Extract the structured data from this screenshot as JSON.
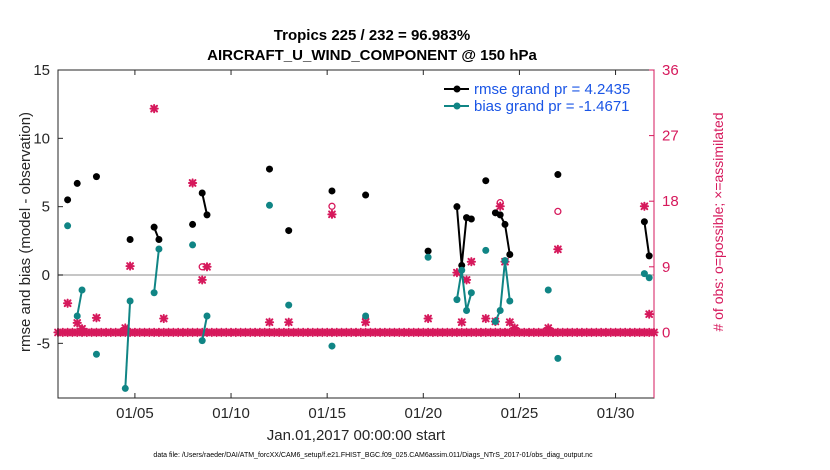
{
  "chart_data": {
    "type": "scatter",
    "title": "Tropics 225 / 232 = 96.983%",
    "subtitle": "AIRCRAFT_U_WIND_COMPONENT @ 150 hPa",
    "xlabel": "Jan.01,2017 00:00:00 start",
    "ylabel": "rmse and bias (model - observation)",
    "ylabel_right": "# of obs: o=possible; ×=assimilated",
    "footnote": "data file: /Users/raeder/DAI/ATM_forcXX/CAM6_setup/f.e21.FHIST_BGC.f09_025.CAM6assim.011/Diags_NTrS_2017-01/obs_diag_output.nc",
    "xlim": [
      1,
      32
    ],
    "ylim": [
      -9,
      15
    ],
    "ylim_right": [
      -9,
      36
    ],
    "x_ticks": [
      5,
      10,
      15,
      20,
      25,
      30
    ],
    "x_tick_labels": [
      "01/05",
      "01/10",
      "01/15",
      "01/20",
      "01/25",
      "01/30"
    ],
    "y_ticks": [
      -5,
      0,
      5,
      10,
      15
    ],
    "y_tick_labels": [
      "-5",
      "0",
      "5",
      "10",
      "15"
    ],
    "y_right_ticks": [
      0,
      9,
      18,
      27,
      36
    ],
    "y_right_tick_labels": [
      "0",
      "9",
      "18",
      "27",
      "36"
    ],
    "zero_line": 0,
    "grid": false,
    "legend_position": "top-right",
    "colors": {
      "rmse": "#000000",
      "bias": "#108585",
      "obs": "#d6195c",
      "zero_line": "#b4b4b4",
      "axis": "#262626"
    },
    "series": [
      {
        "name": "rmse grand pr = 4.2435",
        "key": "rmse",
        "segments": [
          [
            [
              1.5,
              5.5
            ]
          ],
          [
            [
              2.0,
              6.7
            ]
          ],
          [
            [
              3.0,
              7.2
            ]
          ],
          [
            [
              4.75,
              2.6
            ]
          ],
          [
            [
              6.0,
              3.5
            ],
            [
              6.25,
              2.6
            ]
          ],
          [
            [
              8.0,
              3.7
            ]
          ],
          [
            [
              8.5,
              6.0
            ],
            [
              8.75,
              4.4
            ]
          ],
          [
            [
              12.0,
              7.75
            ]
          ],
          [
            [
              13.0,
              3.25
            ]
          ],
          [
            [
              15.25,
              6.15
            ]
          ],
          [
            [
              17.0,
              5.85
            ]
          ],
          [
            [
              20.25,
              1.75
            ]
          ],
          [
            [
              21.75,
              5.0
            ],
            [
              22.0,
              0.7
            ],
            [
              22.25,
              4.2
            ],
            [
              22.5,
              4.1
            ]
          ],
          [
            [
              23.25,
              6.9
            ]
          ],
          [
            [
              23.75,
              4.55
            ],
            [
              24.0,
              4.4
            ],
            [
              24.25,
              3.7
            ],
            [
              24.5,
              1.5
            ]
          ],
          [
            [
              27.0,
              7.35
            ]
          ],
          [
            [
              31.5,
              3.9
            ],
            [
              31.75,
              1.4
            ]
          ]
        ]
      },
      {
        "name": "bias grand pr = -1.4671",
        "key": "bias",
        "segments": [
          [
            [
              1.5,
              3.6
            ]
          ],
          [
            [
              2.0,
              -3.0
            ],
            [
              2.25,
              -1.1
            ]
          ],
          [
            [
              3.0,
              -5.8
            ]
          ],
          [
            [
              4.5,
              -8.3
            ],
            [
              4.75,
              -1.9
            ]
          ],
          [
            [
              6.0,
              -1.3
            ],
            [
              6.25,
              1.9
            ]
          ],
          [
            [
              8.0,
              2.2
            ]
          ],
          [
            [
              8.5,
              -4.8
            ],
            [
              8.75,
              -3.0
            ]
          ],
          [
            [
              12.0,
              5.1
            ]
          ],
          [
            [
              13.0,
              -2.2
            ]
          ],
          [
            [
              15.25,
              -5.2
            ]
          ],
          [
            [
              17.0,
              -3.0
            ]
          ],
          [
            [
              20.25,
              1.3
            ]
          ],
          [
            [
              21.75,
              -1.8
            ],
            [
              22.0,
              0.35
            ],
            [
              22.25,
              -2.6
            ],
            [
              22.5,
              -1.3
            ]
          ],
          [
            [
              23.25,
              1.8
            ]
          ],
          [
            [
              23.75,
              -3.4
            ],
            [
              24.0,
              -2.6
            ],
            [
              24.25,
              1.05
            ],
            [
              24.5,
              -1.9
            ]
          ],
          [
            [
              26.5,
              -1.1
            ]
          ],
          [
            [
              27.0,
              -6.1
            ]
          ],
          [
            [
              31.5,
              0.1
            ],
            [
              31.75,
              -0.2
            ]
          ]
        ]
      }
    ],
    "obs_assimilated_zero_x": [
      1.0,
      1.25,
      1.5,
      1.75,
      2.0,
      2.25,
      2.5,
      2.75,
      3.0,
      3.25,
      3.5,
      3.75,
      4.0,
      4.25,
      4.5,
      4.75,
      5.0,
      5.25,
      5.5,
      5.75,
      6.0,
      6.25,
      6.5,
      6.75,
      7.0,
      7.25,
      7.5,
      7.75,
      8.0,
      8.25,
      8.5,
      8.75,
      9.0,
      9.25,
      9.5,
      9.75,
      10.0,
      10.25,
      10.5,
      10.75,
      11.0,
      11.25,
      11.5,
      11.75,
      12.0,
      12.25,
      12.5,
      12.75,
      13.0,
      13.25,
      13.5,
      13.75,
      14.0,
      14.25,
      14.5,
      14.75,
      15.0,
      15.25,
      15.5,
      15.75,
      16.0,
      16.25,
      16.5,
      16.75,
      17.0,
      17.25,
      17.5,
      17.75,
      18.0,
      18.25,
      18.5,
      18.75,
      19.0,
      19.25,
      19.5,
      19.75,
      20.0,
      20.25,
      20.5,
      20.75,
      21.0,
      21.25,
      21.5,
      21.75,
      22.0,
      22.25,
      22.5,
      22.75,
      23.0,
      23.25,
      23.5,
      23.75,
      24.0,
      24.25,
      24.5,
      24.75,
      25.0,
      25.25,
      25.5,
      25.75,
      26.0,
      26.25,
      26.5,
      26.75,
      27.0,
      27.25,
      27.5,
      27.75,
      28.0,
      28.25,
      28.5,
      28.75,
      29.0,
      29.25,
      29.5,
      29.75,
      30.0,
      30.25,
      30.5,
      30.75,
      31.0,
      31.25,
      31.5,
      31.75,
      32.0
    ],
    "obs_assimilated_points": [
      [
        1.5,
        4
      ],
      [
        2.0,
        1.3
      ],
      [
        2.25,
        0.5
      ],
      [
        3.0,
        2
      ],
      [
        4.5,
        0.6
      ],
      [
        4.75,
        9.1
      ],
      [
        6.0,
        30.7
      ],
      [
        6.5,
        1.9
      ],
      [
        8.0,
        20.5
      ],
      [
        8.5,
        7.2
      ],
      [
        8.75,
        9
      ],
      [
        12.0,
        1.4
      ],
      [
        13.0,
        1.4
      ],
      [
        15.25,
        16.2
      ],
      [
        17.0,
        1.4
      ],
      [
        20.25,
        1.9
      ],
      [
        21.75,
        8.2
      ],
      [
        22.0,
        1.4
      ],
      [
        22.25,
        7.2
      ],
      [
        22.5,
        9.7
      ],
      [
        23.25,
        1.9
      ],
      [
        23.75,
        1.5
      ],
      [
        24.0,
        17.3
      ],
      [
        24.25,
        9.7
      ],
      [
        24.5,
        1.4
      ],
      [
        24.75,
        0.6
      ],
      [
        26.5,
        0.6
      ],
      [
        26.75,
        0
      ],
      [
        27.0,
        11.4
      ],
      [
        31.5,
        17.3
      ],
      [
        31.75,
        2.5
      ]
    ],
    "obs_possible_points": [
      [
        8.5,
        9
      ],
      [
        15.25,
        17.3
      ],
      [
        17.0,
        1.9
      ],
      [
        24.0,
        17.8
      ],
      [
        27.0,
        16.6
      ]
    ]
  }
}
